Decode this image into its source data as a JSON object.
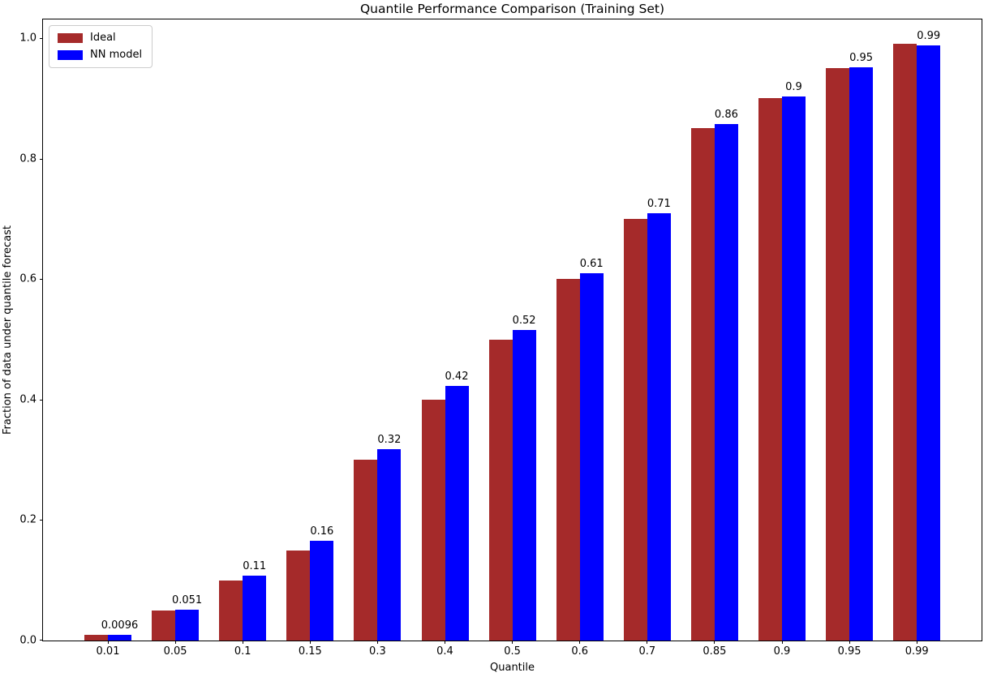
{
  "figure": {
    "title": "Quantile Performance Comparison (Training Set)",
    "xlabel": "Quantile",
    "ylabel": "Fraction of data under quantile forecast"
  },
  "legend": {
    "position": "upper left",
    "items": [
      {
        "label": "Ideal",
        "color": "#a52a2a"
      },
      {
        "label": "NN model",
        "color": "#0000ff"
      }
    ]
  },
  "chart_data": {
    "type": "bar",
    "title": "Quantile Performance Comparison (Training Set)",
    "xlabel": "Quantile",
    "ylabel": "Fraction of data under quantile forecast",
    "categories": [
      "0.01",
      "0.05",
      "0.1",
      "0.15",
      "0.3",
      "0.4",
      "0.5",
      "0.6",
      "0.7",
      "0.85",
      "0.9",
      "0.95",
      "0.99"
    ],
    "series": [
      {
        "name": "Ideal",
        "color": "#a52a2a",
        "values": [
          0.01,
          0.05,
          0.1,
          0.15,
          0.3,
          0.4,
          0.5,
          0.6,
          0.7,
          0.85,
          0.9,
          0.95,
          0.99
        ]
      },
      {
        "name": "NN model",
        "color": "#0000ff",
        "values": [
          0.0096,
          0.051,
          0.108,
          0.165,
          0.318,
          0.423,
          0.515,
          0.61,
          0.709,
          0.857,
          0.903,
          0.951,
          0.988
        ],
        "bar_labels": [
          "0.0096",
          "0.051",
          "0.11",
          "0.16",
          "0.32",
          "0.42",
          "0.52",
          "0.61",
          "0.71",
          "0.86",
          "0.9",
          "0.95",
          "0.99"
        ]
      }
    ],
    "ylim": [
      0.0,
      1.033
    ],
    "yticks": [
      "0.0",
      "0.2",
      "0.4",
      "0.6",
      "0.8",
      "1.0"
    ],
    "grid": false,
    "legend_position": "upper left"
  }
}
